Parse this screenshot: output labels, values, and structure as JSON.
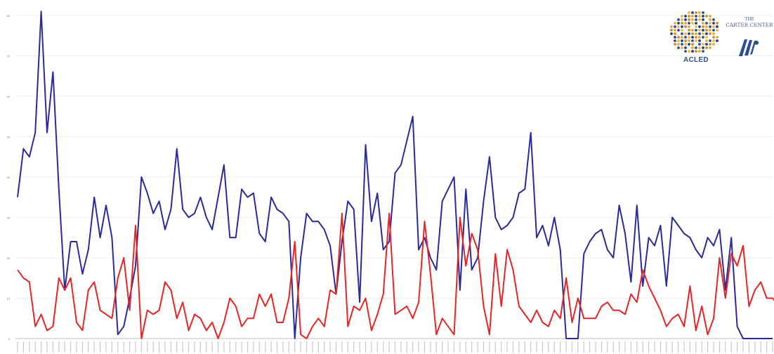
{
  "logos": {
    "acled": "ACLED",
    "carter_the": "THE",
    "carter_name": "CARTER CENTER"
  },
  "chart_data": {
    "type": "line",
    "title": "",
    "xlabel": "",
    "ylabel": "",
    "ylim": [
      0,
      80
    ],
    "y_ticks": [
      0,
      10,
      20,
      30,
      40,
      50,
      60,
      70,
      80
    ],
    "grid": "horizontal",
    "legend": "none",
    "x_tick_labels_legible": false,
    "series": [
      {
        "color": "#2a2a9a",
        "values": [
          35,
          47,
          45,
          51,
          81,
          51,
          66,
          37,
          12,
          24,
          24,
          16,
          22,
          35,
          25,
          33,
          25,
          1,
          3,
          10,
          18,
          40,
          36,
          31,
          34,
          27,
          32,
          47,
          32,
          30,
          31,
          35,
          30,
          27,
          35,
          43,
          25,
          25,
          37,
          35,
          36,
          26,
          24,
          35,
          32,
          31,
          29,
          0,
          20,
          31,
          29,
          29,
          27,
          23,
          11,
          24,
          34,
          32,
          9,
          48,
          29,
          36,
          22,
          24,
          41,
          43,
          49,
          55,
          22,
          25,
          20,
          17,
          34,
          37,
          40,
          12,
          37,
          17,
          20,
          34,
          45,
          30,
          27,
          28,
          30,
          36,
          37,
          51,
          25,
          28,
          23,
          30,
          22,
          0,
          0,
          0,
          21,
          24,
          26,
          27,
          22,
          20,
          33,
          26,
          14,
          33,
          13,
          25,
          23,
          28,
          13,
          30,
          28,
          26,
          25,
          22,
          20,
          25,
          23,
          27,
          12,
          25,
          3,
          0,
          0,
          0,
          0,
          0,
          0
        ]
      },
      {
        "color": "#e32626",
        "values": [
          17,
          15,
          14,
          3,
          6,
          2,
          3,
          15,
          12,
          15,
          4,
          2,
          12,
          14,
          7,
          6,
          5,
          15,
          20,
          7,
          28,
          0,
          7,
          6,
          7,
          14,
          12,
          5,
          9,
          2,
          6,
          5,
          2,
          4,
          0,
          4,
          10,
          8,
          3,
          5,
          5,
          11,
          8,
          11,
          4,
          4,
          10,
          24,
          1,
          0,
          3,
          5,
          3,
          12,
          11,
          31,
          3,
          8,
          7,
          10,
          2,
          6,
          11,
          31,
          6,
          7,
          8,
          5,
          9,
          29,
          16,
          1,
          5,
          3,
          1,
          30,
          18,
          26,
          22,
          8,
          1,
          21,
          8,
          22,
          17,
          8,
          6,
          4,
          7,
          4,
          3,
          7,
          5,
          15,
          4,
          10,
          5,
          5,
          5,
          8,
          9,
          7,
          7,
          6,
          11,
          9,
          17,
          13,
          10,
          7,
          3,
          5,
          6,
          3,
          13,
          2,
          8,
          1,
          5,
          20,
          10,
          21,
          18,
          23,
          8,
          12,
          14,
          10,
          10,
          8
        ]
      }
    ]
  }
}
